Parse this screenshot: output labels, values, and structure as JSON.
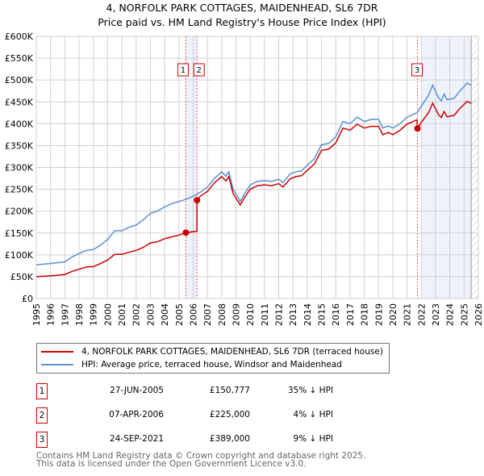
{
  "title_line1": "4, NORFOLK PARK COTTAGES, MAIDENHEAD, SL6 7DR",
  "title_line2": "Price paid vs. HM Land Registry's House Price Index (HPI)",
  "chart_data": {
    "type": "line",
    "title": "4, NORFOLK PARK COTTAGES, MAIDENHEAD, SL6 7DR — Price paid vs. HM Land Registry's House Price Index (HPI)",
    "xlim": [
      1995,
      2026
    ],
    "ylim": [
      0,
      600000
    ],
    "x_ticks": [
      "1995",
      "1996",
      "1997",
      "1998",
      "1999",
      "2000",
      "2001",
      "2002",
      "2003",
      "2004",
      "2005",
      "2006",
      "2007",
      "2008",
      "2009",
      "2010",
      "2011",
      "2012",
      "2013",
      "2014",
      "2015",
      "2016",
      "2017",
      "2018",
      "2019",
      "2020",
      "2021",
      "2022",
      "2023",
      "2024",
      "2025",
      "2026"
    ],
    "y_ticks": [
      {
        "v": 0,
        "label": "£0"
      },
      {
        "v": 50000,
        "label": "£50K"
      },
      {
        "v": 100000,
        "label": "£100K"
      },
      {
        "v": 150000,
        "label": "£150K"
      },
      {
        "v": 200000,
        "label": "£200K"
      },
      {
        "v": 250000,
        "label": "£250K"
      },
      {
        "v": 300000,
        "label": "£300K"
      },
      {
        "v": 350000,
        "label": "£350K"
      },
      {
        "v": 400000,
        "label": "£400K"
      },
      {
        "v": 450000,
        "label": "£450K"
      },
      {
        "v": 500000,
        "label": "£500K"
      },
      {
        "v": 550000,
        "label": "£550K"
      },
      {
        "v": 600000,
        "label": "£600K"
      }
    ],
    "grid": true,
    "colors": {
      "property": "#cc0000",
      "hpi": "#5b8fd4",
      "shade": "#edf2fb"
    },
    "shaded_periods": [
      [
        2005.49,
        2006.27
      ],
      [
        2022.0,
        2025.5
      ]
    ],
    "hatched_from": 2025.5,
    "series": [
      {
        "name": "4, NORFOLK PARK COTTAGES, MAIDENHEAD, SL6 7DR (terraced house)",
        "color": "#cc0000",
        "x": [
          1995,
          1996,
          1997,
          1997.5,
          1998,
          1998.5,
          1999,
          1999.5,
          2000,
          2000.5,
          2001,
          2001.5,
          2002,
          2002.5,
          2003,
          2003.5,
          2004,
          2004.5,
          2005,
          2005.49,
          2006,
          2006.26,
          2006.27,
          2006.5,
          2007,
          2007.5,
          2008,
          2008.3,
          2008.5,
          2008.8,
          2009.3,
          2009.6,
          2010,
          2010.5,
          2011,
          2011.5,
          2012,
          2012.3,
          2012.8,
          2013.2,
          2013.6,
          2014,
          2014.5,
          2015,
          2015.5,
          2016,
          2016.5,
          2017,
          2017.5,
          2018,
          2018.5,
          2019,
          2019.3,
          2019.7,
          2020,
          2020.5,
          2021,
          2021.7,
          2021.73,
          2022,
          2022.5,
          2022.8,
          2023.2,
          2023.4,
          2023.6,
          2023.8,
          2024.3,
          2024.7,
          2025,
          2025.2,
          2025.5
        ],
        "y": [
          50000,
          52000,
          55000,
          62000,
          67000,
          72000,
          73000,
          80000,
          88000,
          101000,
          101000,
          106000,
          110000,
          117000,
          127000,
          130000,
          137000,
          141000,
          145000,
          150777,
          153000,
          154000,
          225000,
          234000,
          245000,
          265000,
          279000,
          269000,
          279000,
          240000,
          214000,
          231000,
          250000,
          258000,
          260000,
          258000,
          263000,
          255000,
          274000,
          279000,
          281000,
          293000,
          308000,
          339000,
          342000,
          356000,
          390000,
          385000,
          399000,
          390000,
          394000,
          394000,
          375000,
          380000,
          375000,
          385000,
          399000,
          409000,
          389000,
          403000,
          425000,
          447000,
          421000,
          414000,
          428000,
          416000,
          419000,
          435000,
          444000,
          451000,
          447000
        ]
      },
      {
        "name": "HPI: Average price, terraced house, Windsor and Maidenhead",
        "color": "#5b8fd4",
        "x": [
          1995,
          1996,
          1997,
          1997.5,
          1998,
          1998.5,
          1999,
          1999.5,
          2000,
          2000.5,
          2001,
          2001.5,
          2002,
          2002.5,
          2003,
          2003.5,
          2004,
          2004.5,
          2005,
          2005.5,
          2006,
          2006.5,
          2007,
          2007.5,
          2008,
          2008.3,
          2008.5,
          2008.8,
          2009.3,
          2009.6,
          2010,
          2010.5,
          2011,
          2011.5,
          2012,
          2012.3,
          2012.8,
          2013.2,
          2013.6,
          2014,
          2014.5,
          2015,
          2015.5,
          2016,
          2016.5,
          2017,
          2017.5,
          2018,
          2018.5,
          2019,
          2019.3,
          2019.7,
          2020,
          2020.5,
          2021,
          2021.7,
          2022,
          2022.5,
          2022.8,
          2023.2,
          2023.4,
          2023.6,
          2023.8,
          2024.3,
          2024.7,
          2025,
          2025.2,
          2025.5
        ],
        "y": [
          77000,
          80000,
          84000,
          95000,
          103000,
          110000,
          112000,
          122000,
          135000,
          155000,
          155000,
          163000,
          168000,
          180000,
          195000,
          200000,
          210000,
          217000,
          222000,
          227000,
          234000,
          243000,
          255000,
          275000,
          290000,
          280000,
          290000,
          250000,
          222000,
          240000,
          260000,
          268000,
          270000,
          268000,
          273000,
          265000,
          285000,
          290000,
          292000,
          305000,
          320000,
          352000,
          355000,
          370000,
          405000,
          400000,
          415000,
          405000,
          410000,
          410000,
          390000,
          395000,
          390000,
          400000,
          415000,
          425000,
          440000,
          465000,
          488000,
          460000,
          452000,
          468000,
          455000,
          458000,
          475000,
          485000,
          493000,
          488000
        ]
      }
    ],
    "sales": [
      {
        "id": "1",
        "x": 2005.49,
        "price": 150777
      },
      {
        "id": "2",
        "x": 2006.27,
        "price": 225000
      },
      {
        "id": "3",
        "x": 2021.73,
        "price": 389000
      }
    ]
  },
  "legend": [
    {
      "label": "4, NORFOLK PARK COTTAGES, MAIDENHEAD, SL6 7DR (terraced house)"
    },
    {
      "label": "HPI: Average price, terraced house, Windsor and Maidenhead"
    }
  ],
  "transactions": [
    {
      "num": "1",
      "date": "27-JUN-2005",
      "price": "£150,777",
      "hpi": "35% ↓ HPI"
    },
    {
      "num": "2",
      "date": "07-APR-2006",
      "price": "£225,000",
      "hpi": "4% ↓ HPI"
    },
    {
      "num": "3",
      "date": "24-SEP-2021",
      "price": "£389,000",
      "hpi": "9% ↓ HPI"
    }
  ],
  "footer_line1": "Contains HM Land Registry data © Crown copyright and database right 2025.",
  "footer_line2": "This data is licensed under the Open Government Licence v3.0."
}
